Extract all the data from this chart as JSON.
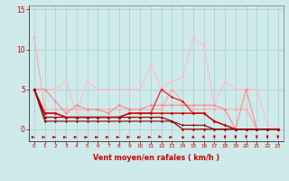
{
  "bg_color": "#ceeaea",
  "grid_color": "#aacccc",
  "xlabel": "Vent moyen/en rafales ( km/h )",
  "xlabel_color": "#cc0000",
  "tick_color": "#cc0000",
  "ylim": [
    -1.5,
    15.5
  ],
  "xlim": [
    -0.5,
    23.5
  ],
  "yticks": [
    0,
    5,
    10,
    15
  ],
  "xticks": [
    0,
    1,
    2,
    3,
    4,
    5,
    6,
    7,
    8,
    9,
    10,
    11,
    12,
    13,
    14,
    15,
    16,
    17,
    18,
    19,
    20,
    21,
    22,
    23
  ],
  "lines": [
    {
      "x": [
        0,
        1,
        2,
        3,
        4,
        5,
        6,
        7,
        8,
        9,
        10,
        11,
        12,
        13,
        14,
        15,
        16,
        17,
        18,
        19,
        20,
        21,
        22,
        23
      ],
      "y": [
        11.5,
        2.5,
        2.5,
        2.5,
        2.5,
        2.5,
        2.5,
        2.5,
        2.5,
        2.5,
        2.5,
        2.5,
        2.5,
        5,
        3.5,
        2.5,
        2.5,
        2.5,
        2.5,
        2.5,
        2.5,
        0,
        0,
        0
      ],
      "color": "#ffaaaa",
      "lw": 0.8,
      "ms": 1.8
    },
    {
      "x": [
        0,
        1,
        2,
        3,
        4,
        5,
        6,
        7,
        8,
        9,
        10,
        11,
        12,
        13,
        14,
        15,
        16,
        17,
        18,
        19,
        20,
        21,
        22,
        23
      ],
      "y": [
        5,
        5,
        5,
        6,
        2,
        6,
        5,
        5,
        5,
        5,
        5,
        8,
        5,
        6,
        6.5,
        11.5,
        10.5,
        3,
        6,
        5,
        5,
        5,
        0.5,
        0.2
      ],
      "color": "#ffbbcc",
      "lw": 0.8,
      "ms": 1.8
    },
    {
      "x": [
        0,
        1,
        2,
        3,
        4,
        5,
        6,
        7,
        8,
        9,
        10,
        11,
        12,
        13,
        14,
        15,
        16,
        17,
        18,
        19,
        20,
        21,
        22,
        23
      ],
      "y": [
        5,
        5,
        3.5,
        2,
        3,
        2.5,
        2.5,
        2,
        3,
        2.5,
        2.5,
        3,
        3,
        3,
        3,
        3,
        3,
        3,
        2.5,
        0,
        5,
        0,
        0,
        0
      ],
      "color": "#ff8888",
      "lw": 0.8,
      "ms": 1.8
    },
    {
      "x": [
        0,
        1,
        2,
        3,
        4,
        5,
        6,
        7,
        8,
        9,
        10,
        11,
        12,
        13,
        14,
        15,
        16,
        17,
        18,
        19,
        20,
        21,
        22,
        23
      ],
      "y": [
        5,
        2,
        2,
        1.5,
        1.5,
        1.5,
        1.5,
        1.5,
        1.5,
        2,
        2,
        2,
        5,
        4,
        3.5,
        2,
        2,
        1,
        0.5,
        0,
        0,
        0,
        0,
        0
      ],
      "color": "#ee2222",
      "lw": 0.9,
      "ms": 1.8
    },
    {
      "x": [
        0,
        1,
        2,
        3,
        4,
        5,
        6,
        7,
        8,
        9,
        10,
        11,
        12,
        13,
        14,
        15,
        16,
        17,
        18,
        19,
        20,
        21,
        22,
        23
      ],
      "y": [
        5,
        2,
        2,
        1.5,
        1.5,
        1.5,
        1.5,
        1.5,
        1.5,
        2,
        2,
        2,
        2,
        2,
        2,
        2,
        2,
        1,
        0.5,
        0,
        0,
        0,
        0,
        0
      ],
      "color": "#cc0000",
      "lw": 1.0,
      "ms": 1.8
    },
    {
      "x": [
        0,
        1,
        2,
        3,
        4,
        5,
        6,
        7,
        8,
        9,
        10,
        11,
        12,
        13,
        14,
        15,
        16,
        17,
        18,
        19,
        20,
        21,
        22,
        23
      ],
      "y": [
        5,
        1.5,
        1.5,
        1.5,
        1.5,
        1.5,
        1.5,
        1.5,
        1.5,
        1.5,
        1.5,
        1.5,
        1.5,
        1,
        0,
        0,
        0,
        0,
        0,
        0,
        0,
        0,
        0,
        0
      ],
      "color": "#aa0000",
      "lw": 0.9,
      "ms": 1.8
    },
    {
      "x": [
        0,
        1,
        2,
        3,
        4,
        5,
        6,
        7,
        8,
        9,
        10,
        11,
        12,
        13,
        14,
        15,
        16,
        17,
        18,
        19,
        20,
        21,
        22,
        23
      ],
      "y": [
        5,
        1,
        1,
        1,
        1,
        1,
        1,
        1,
        1,
        1,
        1,
        1,
        1,
        1,
        0.5,
        0.5,
        0.5,
        0,
        0,
        0,
        0,
        0,
        0,
        0
      ],
      "color": "#880000",
      "lw": 0.8,
      "ms": 1.5
    }
  ],
  "arrow_angles_deg": [
    0,
    0,
    0,
    0,
    0,
    0,
    0,
    0,
    0,
    10,
    0,
    0,
    25,
    0,
    40,
    55,
    70,
    90,
    90,
    90,
    90,
    90,
    90,
    90
  ]
}
